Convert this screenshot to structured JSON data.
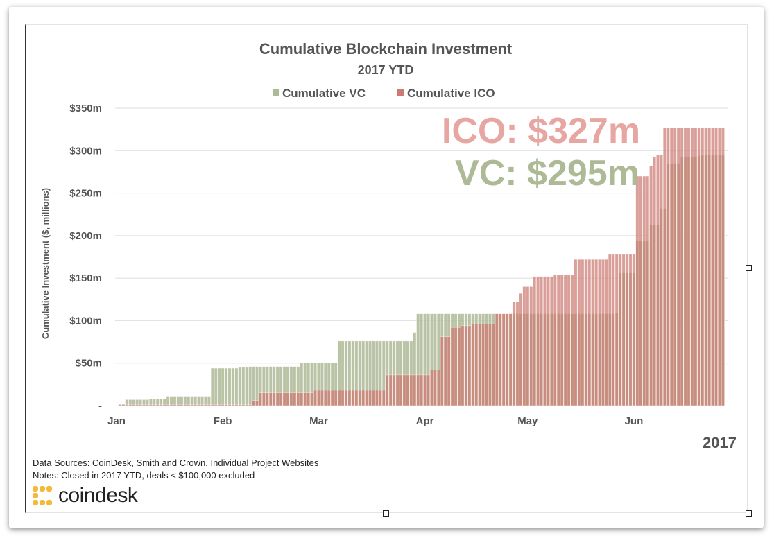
{
  "chart_data": {
    "type": "bar",
    "title": "Cumulative Blockchain Investment",
    "subtitle": "2017 YTD",
    "ylabel": "Cumulative Investment ($, millions)",
    "year_label": "2017",
    "ylim": [
      0,
      350
    ],
    "yticks": [
      {
        "value": 350,
        "label": "$350m"
      },
      {
        "value": 300,
        "label": "$300m"
      },
      {
        "value": 250,
        "label": "$250m"
      },
      {
        "value": 200,
        "label": "$200m"
      },
      {
        "value": 150,
        "label": "$150m"
      },
      {
        "value": 100,
        "label": "$100m"
      },
      {
        "value": 50,
        "label": "$50m"
      },
      {
        "value": 0,
        "label": "-"
      }
    ],
    "xticks": [
      {
        "day": 0,
        "label": "Jan"
      },
      {
        "day": 31,
        "label": "Feb"
      },
      {
        "day": 59,
        "label": "Mar"
      },
      {
        "day": 90,
        "label": "Apr"
      },
      {
        "day": 120,
        "label": "May"
      },
      {
        "day": 151,
        "label": "Jun"
      }
    ],
    "legend_position": "top-center",
    "grid": true,
    "series": [
      {
        "name": "Cumulative VC",
        "color": "#aeb995",
        "steps": [
          [
            1,
            2
          ],
          [
            3,
            7
          ],
          [
            10,
            8
          ],
          [
            15,
            11
          ],
          [
            28,
            44
          ],
          [
            36,
            45
          ],
          [
            39,
            46
          ],
          [
            54,
            50
          ],
          [
            65,
            76
          ],
          [
            87,
            86
          ],
          [
            88,
            108
          ],
          [
            146,
            109
          ],
          [
            147,
            156
          ],
          [
            152,
            194
          ],
          [
            156,
            213
          ],
          [
            159,
            232
          ],
          [
            161,
            285
          ],
          [
            165,
            293
          ],
          [
            170,
            294
          ],
          [
            171,
            295
          ],
          [
            177,
            295
          ]
        ]
      },
      {
        "name": "Cumulative ICO",
        "color": "#cc7a72",
        "steps": [
          [
            1,
            1
          ],
          [
            40,
            6
          ],
          [
            42,
            15
          ],
          [
            58,
            18
          ],
          [
            79,
            36
          ],
          [
            92,
            42
          ],
          [
            95,
            81
          ],
          [
            98,
            92
          ],
          [
            101,
            94
          ],
          [
            104,
            96
          ],
          [
            111,
            108
          ],
          [
            116,
            122
          ],
          [
            118,
            132
          ],
          [
            119,
            140
          ],
          [
            122,
            152
          ],
          [
            128,
            154
          ],
          [
            134,
            172
          ],
          [
            140,
            172
          ],
          [
            144,
            178
          ],
          [
            145,
            178
          ],
          [
            152,
            270
          ],
          [
            156,
            282
          ],
          [
            157,
            293
          ],
          [
            158,
            295
          ],
          [
            160,
            327
          ],
          [
            177,
            327
          ]
        ]
      }
    ]
  },
  "annotations": {
    "ico_total": "ICO: $327m",
    "vc_total": "VC: $295m"
  },
  "footer": {
    "sources": "Data Sources: CoinDesk, Smith and Crown, Individual Project Websites",
    "notes": "Notes: Closed in 2017 YTD, deals < $100,000 excluded",
    "brand": "coindesk"
  }
}
